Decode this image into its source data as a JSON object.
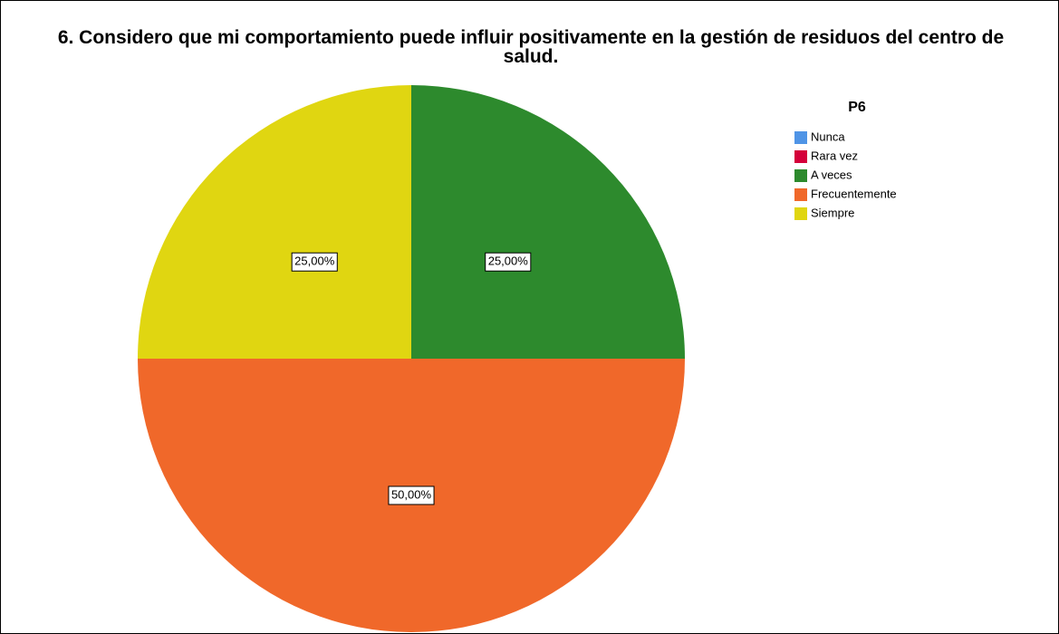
{
  "chart_data": {
    "type": "pie",
    "title": "6. Considero que mi comportamiento puede influir positivamente en la gestión de residuos del centro de salud.",
    "legend_title": "P6",
    "categories": [
      "Nunca",
      "Rara vez",
      "A veces",
      "Frecuentemente",
      "Siempre"
    ],
    "values": [
      0,
      0,
      25,
      50,
      25
    ],
    "value_labels": [
      null,
      null,
      "25,00%",
      "50,00%",
      "25,00%"
    ],
    "colors": [
      "#4f94e6",
      "#d4003a",
      "#2d8a2d",
      "#f0682a",
      "#e0d611"
    ],
    "legend": "right"
  }
}
